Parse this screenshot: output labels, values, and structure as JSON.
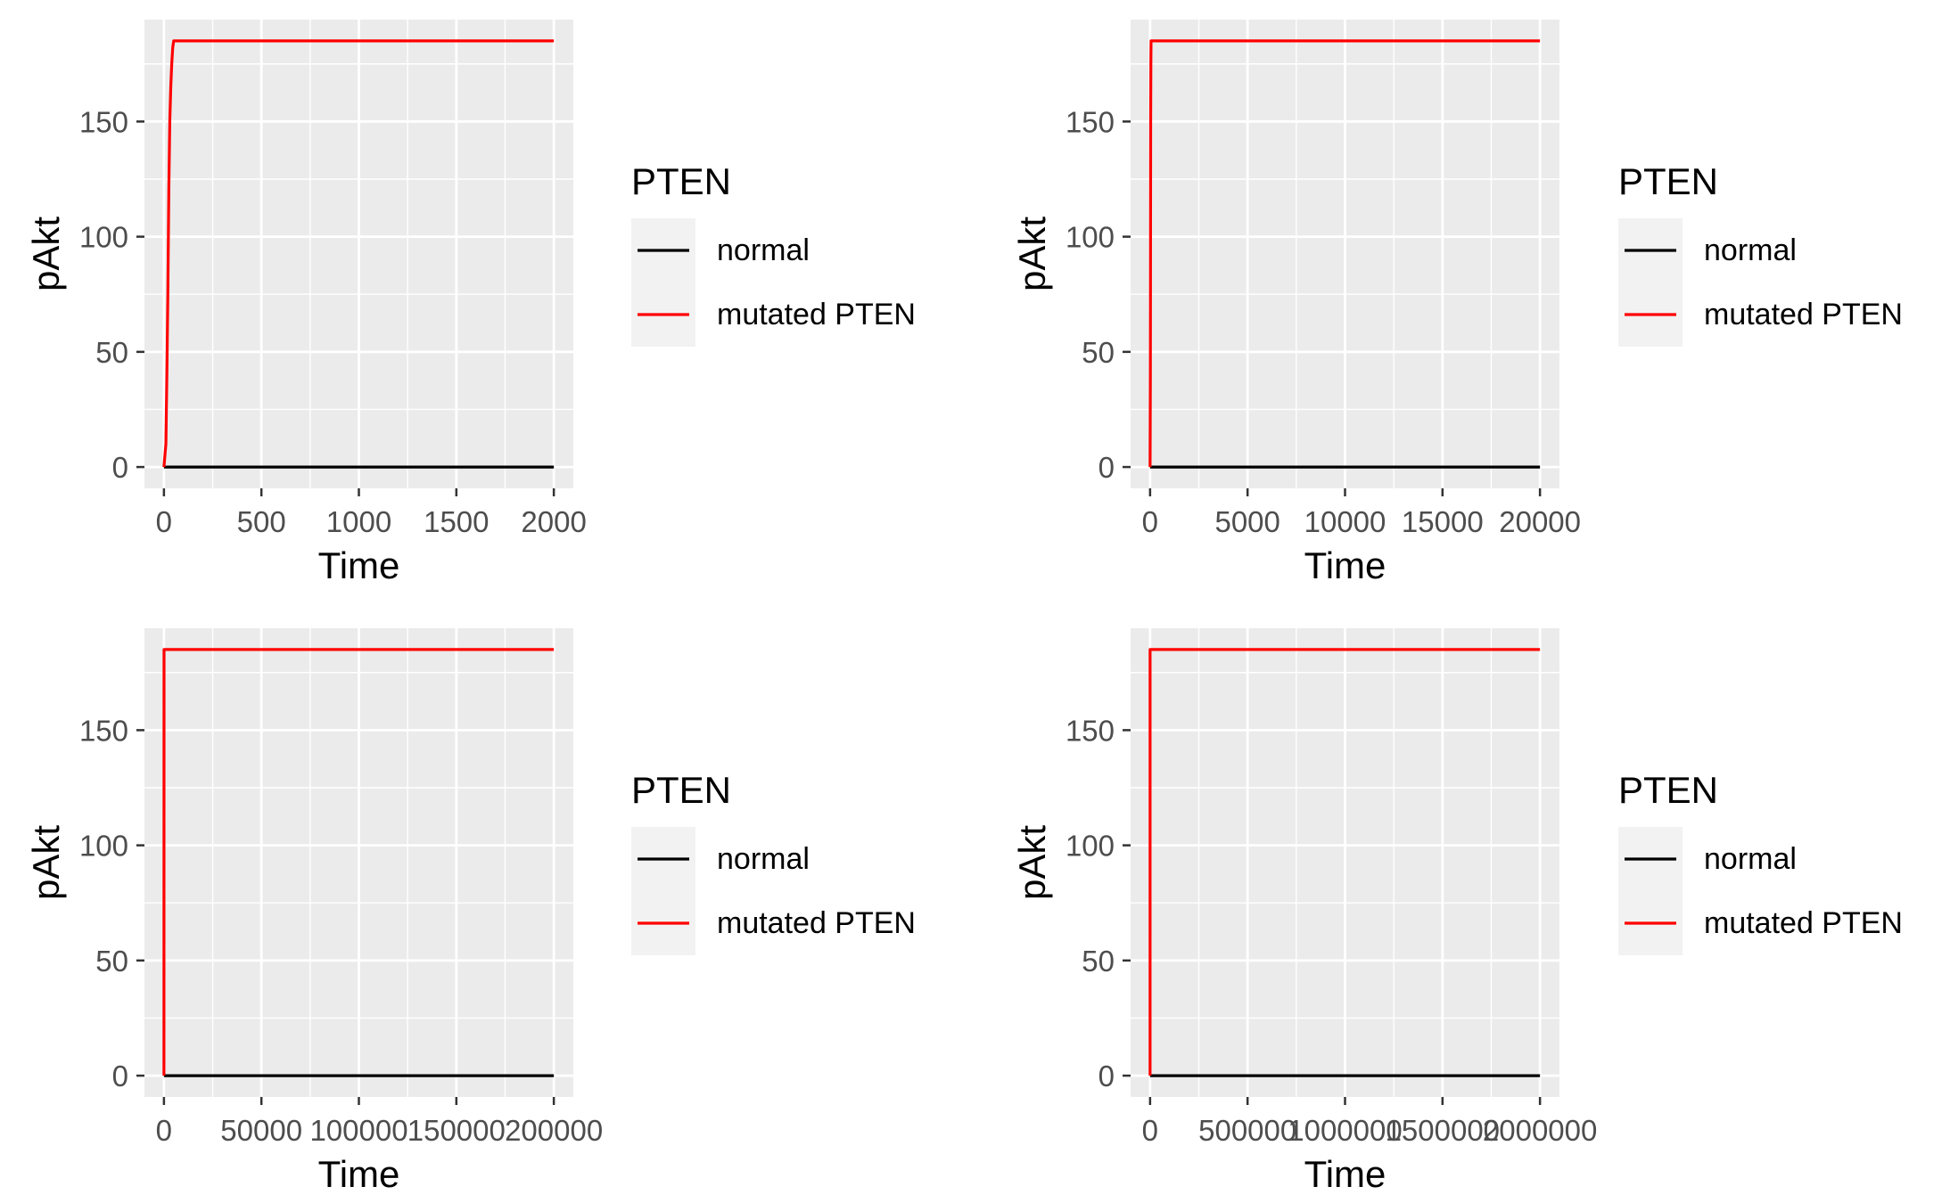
{
  "legend": {
    "title": "PTEN",
    "items": [
      {
        "label": "normal",
        "color": "#000000"
      },
      {
        "label": "mutated PTEN",
        "color": "#ff0000"
      }
    ]
  },
  "colors": {
    "panel_background": "#ebebeb",
    "gridline": "#ffffff",
    "legend_key_background": "#f2f2f2",
    "tick_label": "#4d4d4d",
    "axis_title": "#000000"
  },
  "chart_data": [
    {
      "type": "line",
      "title": "",
      "xlabel": "Time",
      "ylabel": "pAkt",
      "xlim": [
        -100,
        2100
      ],
      "ylim": [
        -9.25,
        194.25
      ],
      "x_ticks": [
        0,
        500,
        1000,
        1500,
        2000
      ],
      "x_tick_labels": [
        "0",
        "500",
        "1000",
        "1500",
        "2000"
      ],
      "y_ticks": [
        0,
        50,
        100,
        150
      ],
      "y_tick_labels": [
        "0",
        "50",
        "100",
        "150"
      ],
      "grid": true,
      "legend_position": "right",
      "series": [
        {
          "name": "normal",
          "color": "#000000",
          "x": [
            0,
            2000
          ],
          "y": [
            0,
            0
          ]
        },
        {
          "name": "mutated PTEN",
          "color": "#ff0000",
          "x": [
            0,
            10,
            15,
            20,
            25,
            30,
            35,
            40,
            45,
            50,
            2000
          ],
          "y": [
            0,
            10,
            40,
            75,
            120,
            150,
            165,
            175,
            182,
            185,
            185
          ]
        }
      ]
    },
    {
      "type": "line",
      "title": "",
      "xlabel": "Time",
      "ylabel": "pAkt",
      "xlim": [
        -1000,
        21000
      ],
      "ylim": [
        -9.25,
        194.25
      ],
      "x_ticks": [
        0,
        5000,
        10000,
        15000,
        20000
      ],
      "x_tick_labels": [
        "0",
        "5000",
        "10000",
        "15000",
        "20000"
      ],
      "y_ticks": [
        0,
        50,
        100,
        150
      ],
      "y_tick_labels": [
        "0",
        "50",
        "100",
        "150"
      ],
      "grid": true,
      "legend_position": "right",
      "series": [
        {
          "name": "normal",
          "color": "#000000",
          "x": [
            0,
            20000
          ],
          "y": [
            0,
            0
          ]
        },
        {
          "name": "mutated PTEN",
          "color": "#ff0000",
          "x": [
            0,
            15,
            20,
            30,
            40,
            50,
            20000
          ],
          "y": [
            0,
            40,
            75,
            150,
            175,
            185,
            185
          ]
        }
      ]
    },
    {
      "type": "line",
      "title": "",
      "xlabel": "Time",
      "ylabel": "pAkt",
      "xlim": [
        -10000,
        210000
      ],
      "ylim": [
        -9.25,
        194.25
      ],
      "x_ticks": [
        0,
        50000,
        100000,
        150000,
        200000
      ],
      "x_tick_labels": [
        "0",
        "50000",
        "100000",
        "150000",
        "200000"
      ],
      "y_ticks": [
        0,
        50,
        100,
        150
      ],
      "y_tick_labels": [
        "0",
        "50",
        "100",
        "150"
      ],
      "grid": true,
      "legend_position": "right",
      "series": [
        {
          "name": "normal",
          "color": "#000000",
          "x": [
            0,
            200000
          ],
          "y": [
            0,
            0
          ]
        },
        {
          "name": "mutated PTEN",
          "color": "#ff0000",
          "x": [
            0,
            50,
            200000
          ],
          "y": [
            0,
            185,
            185
          ]
        }
      ]
    },
    {
      "type": "line",
      "title": "",
      "xlabel": "Time",
      "ylabel": "pAkt",
      "xlim": [
        -100000,
        2100000
      ],
      "ylim": [
        -9.25,
        194.25
      ],
      "x_ticks": [
        0,
        500000,
        1000000,
        1500000,
        2000000
      ],
      "x_tick_labels": [
        "0",
        "500000",
        "1000000",
        "1500000",
        "2000000"
      ],
      "y_ticks": [
        0,
        50,
        100,
        150
      ],
      "y_tick_labels": [
        "0",
        "50",
        "100",
        "150"
      ],
      "grid": true,
      "legend_position": "right",
      "series": [
        {
          "name": "normal",
          "color": "#000000",
          "x": [
            0,
            2000000
          ],
          "y": [
            0,
            0
          ]
        },
        {
          "name": "mutated PTEN",
          "color": "#ff0000",
          "x": [
            0,
            50,
            2000000
          ],
          "y": [
            0,
            185,
            185
          ]
        }
      ]
    }
  ]
}
